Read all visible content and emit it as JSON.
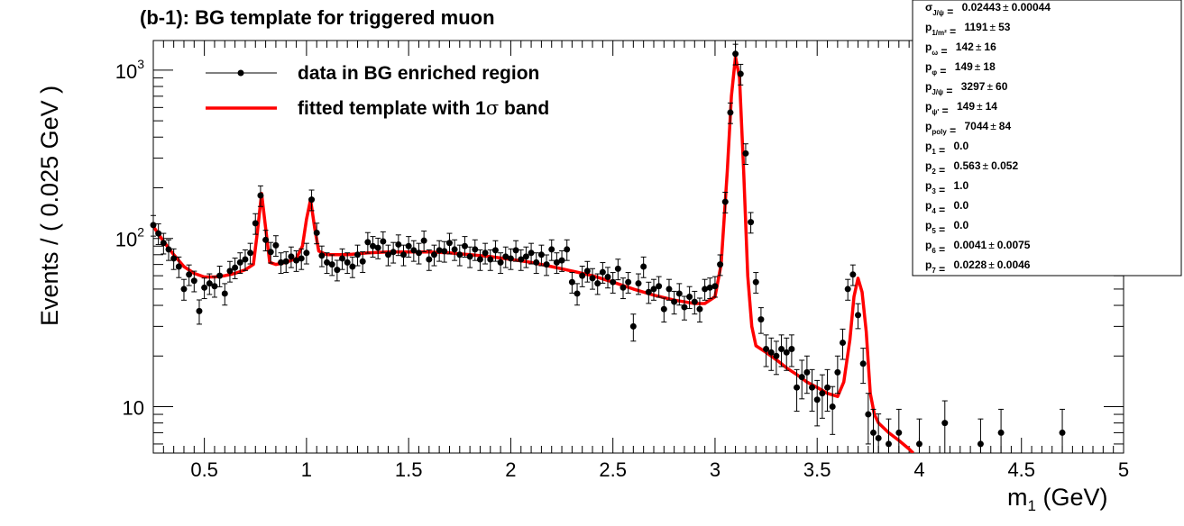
{
  "chart_data": {
    "type": "scatter",
    "title": "(b-1): BG template for triggered muon",
    "xlabel": "m",
    "xlabel_sub": "1",
    "xlabel_unit": " (GeV)",
    "ylabel": "Events / ( 0.025 GeV )",
    "xlim": [
      0.25,
      5.0
    ],
    "ylim": [
      5.3,
      1500
    ],
    "y_scale": "log",
    "x_ticks": [
      "0.5",
      "1",
      "1.5",
      "2",
      "2.5",
      "3",
      "3.5",
      "4",
      "4.5",
      "5"
    ],
    "y_ticks": [
      {
        "value": 10,
        "base": "10",
        "exp": ""
      },
      {
        "value": 100,
        "base": "10",
        "exp": "2"
      },
      {
        "value": 1000,
        "base": "10",
        "exp": "3"
      }
    ],
    "grid": false,
    "legend_position": "top-left",
    "legend": [
      {
        "label": "data in BG enriched region",
        "style": "marker-with-line",
        "color": "#000000"
      },
      {
        "label": "fitted template with 1",
        "symbol": "σ",
        "label_suffix": " band",
        "style": "line",
        "color": "#ff0000"
      }
    ],
    "series": [
      {
        "name": "data in BG enriched region",
        "kind": "points-with-errors",
        "color": "#000000",
        "x": [
          0.25,
          0.275,
          0.3,
          0.325,
          0.35,
          0.375,
          0.4,
          0.425,
          0.45,
          0.475,
          0.5,
          0.525,
          0.55,
          0.575,
          0.6,
          0.625,
          0.65,
          0.675,
          0.7,
          0.725,
          0.75,
          0.775,
          0.8,
          0.825,
          0.85,
          0.875,
          0.9,
          0.925,
          0.95,
          0.975,
          1.0,
          1.025,
          1.05,
          1.075,
          1.1,
          1.125,
          1.15,
          1.175,
          1.2,
          1.225,
          1.25,
          1.275,
          1.3,
          1.325,
          1.35,
          1.375,
          1.4,
          1.425,
          1.45,
          1.475,
          1.5,
          1.525,
          1.55,
          1.575,
          1.6,
          1.625,
          1.65,
          1.675,
          1.7,
          1.725,
          1.75,
          1.775,
          1.8,
          1.825,
          1.85,
          1.875,
          1.9,
          1.925,
          1.95,
          1.975,
          2.0,
          2.025,
          2.05,
          2.075,
          2.1,
          2.125,
          2.15,
          2.175,
          2.2,
          2.225,
          2.25,
          2.275,
          2.3,
          2.325,
          2.35,
          2.375,
          2.4,
          2.425,
          2.45,
          2.475,
          2.5,
          2.525,
          2.55,
          2.575,
          2.6,
          2.625,
          2.65,
          2.675,
          2.7,
          2.725,
          2.75,
          2.775,
          2.8,
          2.825,
          2.85,
          2.875,
          2.9,
          2.925,
          2.95,
          2.975,
          3.0,
          3.025,
          3.05,
          3.075,
          3.1,
          3.125,
          3.15,
          3.175,
          3.2,
          3.225,
          3.25,
          3.275,
          3.3,
          3.325,
          3.35,
          3.375,
          3.4,
          3.425,
          3.45,
          3.475,
          3.5,
          3.525,
          3.55,
          3.575,
          3.6,
          3.625,
          3.65,
          3.675,
          3.7,
          3.725,
          3.75,
          3.775,
          3.8,
          3.85,
          3.9,
          4.0,
          4.125,
          4.3,
          4.4,
          4.7
        ],
        "y": [
          120,
          107,
          94,
          86,
          76,
          68,
          50,
          61,
          56,
          37,
          51,
          54,
          52,
          60,
          47,
          64,
          67,
          72,
          75,
          82,
          123,
          180,
          98,
          83,
          91,
          72,
          73,
          78,
          74,
          76,
          82,
          170,
          108,
          79,
          72,
          70,
          65,
          76,
          72,
          68,
          80,
          73,
          95,
          90,
          88,
          96,
          80,
          83,
          92,
          80,
          90,
          85,
          82,
          97,
          75,
          80,
          85,
          84,
          94,
          86,
          80,
          90,
          78,
          86,
          75,
          82,
          75,
          85,
          72,
          78,
          76,
          85,
          75,
          78,
          82,
          72,
          80,
          70,
          86,
          72,
          74,
          86,
          55,
          47,
          60,
          64,
          58,
          54,
          63,
          59,
          55,
          66,
          51,
          55,
          30,
          54,
          68,
          48,
          50,
          52,
          38,
          50,
          42,
          47,
          39,
          45,
          42,
          38,
          50,
          51,
          52,
          70,
          165,
          560,
          1250,
          950,
          320,
          125,
          55,
          33,
          22,
          21,
          20,
          22,
          21,
          22,
          13,
          15,
          16,
          13,
          11,
          12,
          13,
          10,
          16,
          24,
          50,
          61,
          35,
          18,
          9,
          7,
          6.5,
          6,
          7,
          6,
          8,
          6,
          7,
          7
        ],
        "y_err_rel": 0.14
      },
      {
        "name": "fitted template with 1σ band",
        "kind": "line",
        "color": "#ff0000",
        "x": [
          0.25,
          0.3,
          0.35,
          0.4,
          0.45,
          0.5,
          0.55,
          0.6,
          0.65,
          0.7,
          0.74,
          0.76,
          0.78,
          0.8,
          0.82,
          0.85,
          0.9,
          0.95,
          0.98,
          1.0,
          1.02,
          1.04,
          1.06,
          1.1,
          1.2,
          1.3,
          1.4,
          1.5,
          1.6,
          1.7,
          1.8,
          1.9,
          2.0,
          2.1,
          2.2,
          2.3,
          2.4,
          2.5,
          2.6,
          2.7,
          2.8,
          2.9,
          2.95,
          3.0,
          3.03,
          3.06,
          3.08,
          3.1,
          3.12,
          3.14,
          3.16,
          3.18,
          3.2,
          3.25,
          3.3,
          3.35,
          3.4,
          3.45,
          3.5,
          3.55,
          3.6,
          3.63,
          3.66,
          3.68,
          3.7,
          3.72,
          3.74,
          3.76,
          3.78,
          3.8,
          3.85,
          3.9,
          3.95,
          3.97
        ],
        "y": [
          118,
          96,
          80,
          68,
          62,
          59,
          59,
          60,
          62,
          65,
          70,
          110,
          185,
          115,
          72,
          70,
          72,
          76,
          90,
          130,
          170,
          115,
          84,
          80,
          80,
          82,
          83,
          83,
          83,
          82,
          80,
          78,
          75,
          72,
          68,
          64,
          60,
          55,
          50,
          46,
          43,
          41,
          41,
          45,
          70,
          250,
          700,
          1200,
          900,
          250,
          60,
          30,
          23,
          21,
          19,
          17,
          15.5,
          14,
          13,
          12,
          11.5,
          14,
          25,
          45,
          58,
          48,
          28,
          12,
          9,
          8,
          7,
          6.3,
          5.6,
          5.3
        ]
      }
    ]
  },
  "fit_box": {
    "rows": [
      {
        "p": "σ",
        "sub": "J/ψ",
        "value": "0.02443",
        "pm": "±",
        "err": "0.00044"
      },
      {
        "p": "p",
        "sub": "1/m²",
        "value": "1191",
        "pm": "±",
        "err": "53"
      },
      {
        "p": "p",
        "sub": "ω",
        "value": "142",
        "pm": "±",
        "err": "16"
      },
      {
        "p": "p",
        "sub": "φ",
        "value": "149",
        "pm": "±",
        "err": "18"
      },
      {
        "p": "p",
        "sub": "J/ψ",
        "value": "3297",
        "pm": "±",
        "err": "60"
      },
      {
        "p": "p",
        "sub": "ψ'",
        "value": "149",
        "pm": "±",
        "err": "14"
      },
      {
        "p": "p",
        "sub": "poly",
        "value": "7044",
        "pm": "±",
        "err": "84"
      },
      {
        "p": "p",
        "sub": "1",
        "value": "0.0",
        "pm": "",
        "err": ""
      },
      {
        "p": "p",
        "sub": "2",
        "value": "0.563",
        "pm": "±",
        "err": "0.052"
      },
      {
        "p": "p",
        "sub": "3",
        "value": "1.0",
        "pm": "",
        "err": ""
      },
      {
        "p": "p",
        "sub": "4",
        "value": "0.0",
        "pm": "",
        "err": ""
      },
      {
        "p": "p",
        "sub": "5",
        "value": "0.0",
        "pm": "",
        "err": ""
      },
      {
        "p": "p",
        "sub": "6",
        "value": "0.0041",
        "pm": "±",
        "err": "0.0075"
      },
      {
        "p": "p",
        "sub": "7",
        "value": "0.0228",
        "pm": "±",
        "err": "0.0046"
      }
    ]
  }
}
